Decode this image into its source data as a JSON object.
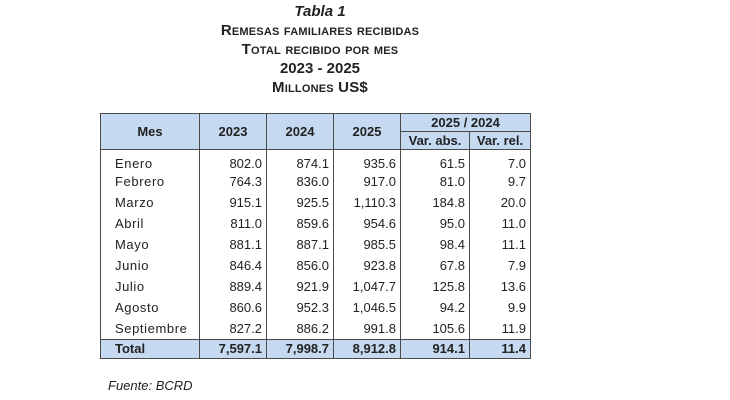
{
  "title": {
    "line1": "Tabla 1",
    "line2": "Remesas familiares recibidas",
    "line3": "Total recibido por mes",
    "line4": "2023 - 2025",
    "line5": "Millones US$"
  },
  "table": {
    "headers": {
      "mes": "Mes",
      "y2023": "2023",
      "y2024": "2024",
      "y2025": "2025",
      "group": "2025 / 2024",
      "var_abs": "Var. abs.",
      "var_rel": "Var. rel."
    },
    "rows": [
      {
        "mes": "Enero",
        "y2023": "802.0",
        "y2024": "874.1",
        "y2025": "935.6",
        "var_abs": "61.5",
        "var_rel": "7.0"
      },
      {
        "mes": "Febrero",
        "y2023": "764.3",
        "y2024": "836.0",
        "y2025": "917.0",
        "var_abs": "81.0",
        "var_rel": "9.7"
      },
      {
        "mes": "Marzo",
        "y2023": "915.1",
        "y2024": "925.5",
        "y2025": "1,110.3",
        "var_abs": "184.8",
        "var_rel": "20.0"
      },
      {
        "mes": "Abril",
        "y2023": "811.0",
        "y2024": "859.6",
        "y2025": "954.6",
        "var_abs": "95.0",
        "var_rel": "11.0"
      },
      {
        "mes": "Mayo",
        "y2023": "881.1",
        "y2024": "887.1",
        "y2025": "985.5",
        "var_abs": "98.4",
        "var_rel": "11.1"
      },
      {
        "mes": "Junio",
        "y2023": "846.4",
        "y2024": "856.0",
        "y2025": "923.8",
        "var_abs": "67.8",
        "var_rel": "7.9"
      },
      {
        "mes": "Julio",
        "y2023": "889.4",
        "y2024": "921.9",
        "y2025": "1,047.7",
        "var_abs": "125.8",
        "var_rel": "13.6"
      },
      {
        "mes": "Agosto",
        "y2023": "860.6",
        "y2024": "952.3",
        "y2025": "1,046.5",
        "var_abs": "94.2",
        "var_rel": "9.9"
      },
      {
        "mes": "Septiembre",
        "y2023": "827.2",
        "y2024": "886.2",
        "y2025": "991.8",
        "var_abs": "105.6",
        "var_rel": "11.9"
      }
    ],
    "total": {
      "mes": "Total",
      "y2023": "7,597.1",
      "y2024": "7,998.7",
      "y2025": "8,912.8",
      "var_abs": "914.1",
      "var_rel": "11.4"
    }
  },
  "source": "Fuente: BCRD",
  "colors": {
    "header_fill": "#c5d9f1",
    "border": "#4a4a4a"
  }
}
